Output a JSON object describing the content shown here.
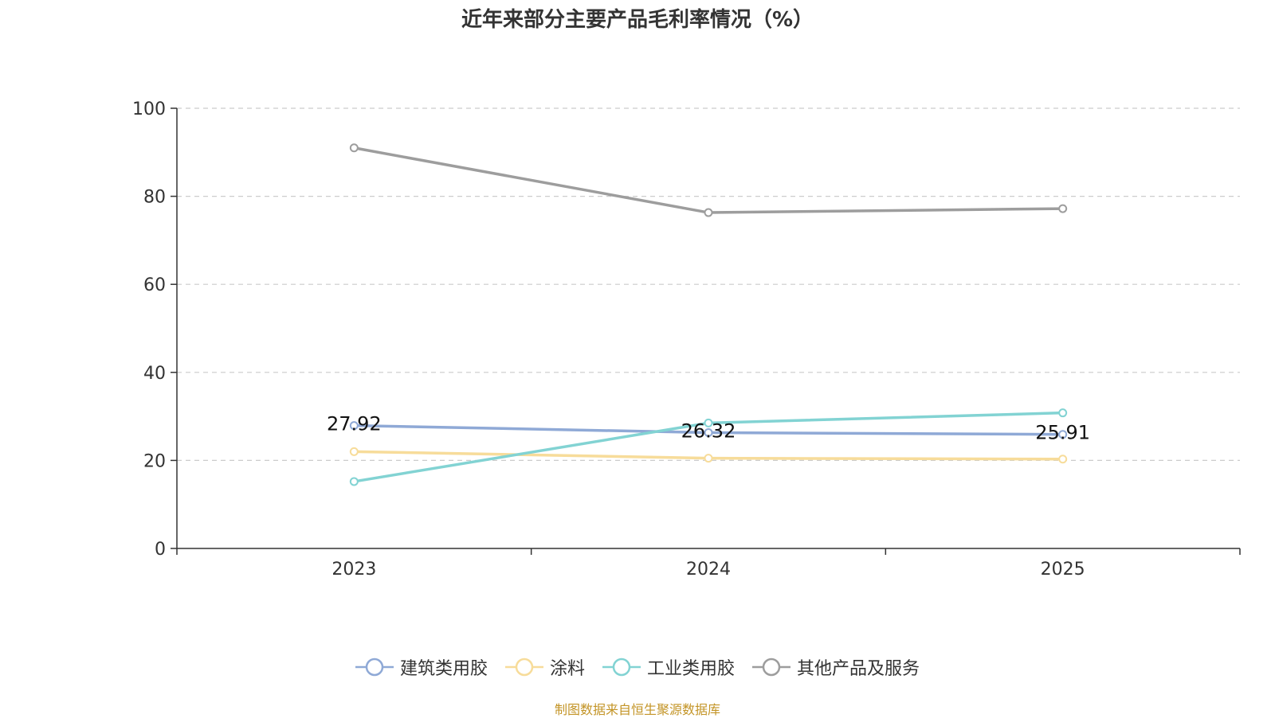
{
  "chart_data": {
    "type": "line",
    "title": "近年来部分主要产品毛利率情况（%）",
    "categories": [
      "2023",
      "2024",
      "2025"
    ],
    "ylim": [
      0,
      100
    ],
    "yticks": [
      0,
      20,
      40,
      60,
      80,
      100
    ],
    "grid": true,
    "legend_position": "bottom",
    "series": [
      {
        "name": "建筑类用胶",
        "values": [
          27.92,
          26.32,
          25.91
        ],
        "color": "#8fa9d6",
        "labels": [
          "27.92",
          "26.32",
          "25.91"
        ]
      },
      {
        "name": "涂料",
        "values": [
          22.0,
          20.5,
          20.3
        ],
        "color": "#f7dc9a"
      },
      {
        "name": "工业类用胶",
        "values": [
          15.2,
          28.5,
          30.8
        ],
        "color": "#82d3d3"
      },
      {
        "name": "其他产品及服务",
        "values": [
          91.0,
          76.3,
          77.2
        ],
        "color": "#9d9d9d"
      }
    ]
  },
  "source_note": "制图数据来自恒生聚源数据库"
}
